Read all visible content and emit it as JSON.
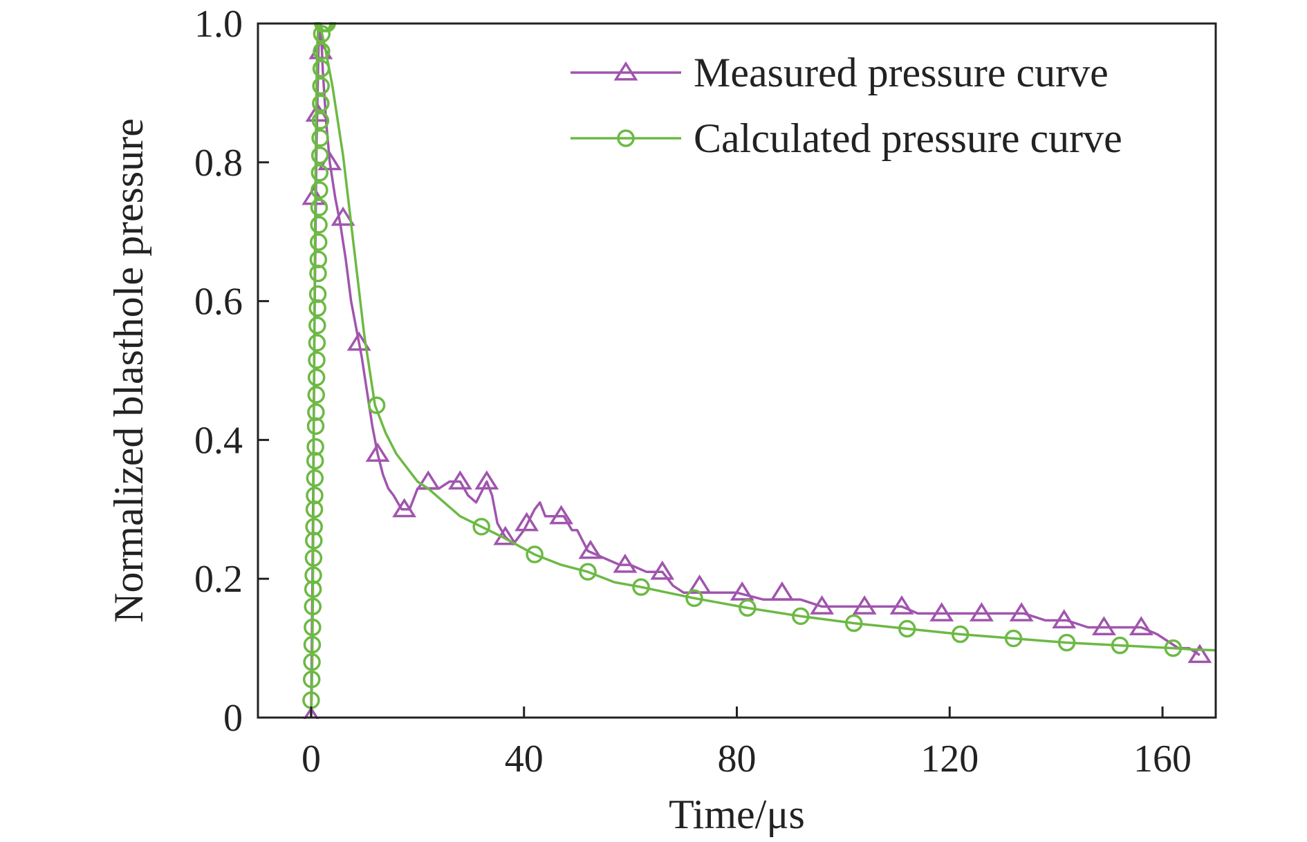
{
  "chart_data": {
    "type": "line",
    "title": "",
    "xlabel": "Time/μs",
    "ylabel": "Normalized blasthole pressure",
    "xlim": [
      -10,
      170
    ],
    "ylim": [
      0,
      1
    ],
    "x_ticks": [
      0,
      40,
      80,
      120,
      160
    ],
    "y_ticks": [
      0,
      0.2,
      0.4,
      0.6,
      0.8,
      1.0
    ],
    "x_tick_labels": [
      "0",
      "40",
      "80",
      "120",
      "160"
    ],
    "y_tick_labels": [
      "0",
      "0.2",
      "0.4",
      "0.6",
      "0.8",
      "1.0"
    ],
    "grid": false,
    "legend_position": "top-right",
    "series": [
      {
        "name": "Measured pressure curve",
        "color": "#a055ad",
        "marker": "triangle-open",
        "line": [
          [
            0,
            0
          ],
          [
            0.3,
            0.25
          ],
          [
            0.6,
            0.55
          ],
          [
            1,
            0.82
          ],
          [
            1.4,
            0.97
          ],
          [
            1.8,
            1.0
          ],
          [
            2.2,
            0.93
          ],
          [
            2.8,
            0.86
          ],
          [
            3.5,
            0.8
          ],
          [
            4.5,
            0.75
          ],
          [
            5.5,
            0.71
          ],
          [
            6.5,
            0.66
          ],
          [
            7.5,
            0.6
          ],
          [
            8.5,
            0.56
          ],
          [
            9.5,
            0.52
          ],
          [
            10.5,
            0.47
          ],
          [
            11.5,
            0.42
          ],
          [
            12.5,
            0.38
          ],
          [
            13.5,
            0.35
          ],
          [
            14.5,
            0.33
          ],
          [
            15.5,
            0.32
          ],
          [
            17,
            0.3
          ],
          [
            18.5,
            0.3
          ],
          [
            20,
            0.33
          ],
          [
            22,
            0.33
          ],
          [
            24,
            0.33
          ],
          [
            26,
            0.34
          ],
          [
            28,
            0.34
          ],
          [
            29.5,
            0.32
          ],
          [
            31,
            0.31
          ],
          [
            33,
            0.34
          ],
          [
            34,
            0.32
          ],
          [
            35,
            0.28
          ],
          [
            36.5,
            0.26
          ],
          [
            38,
            0.25
          ],
          [
            40,
            0.27
          ],
          [
            42,
            0.3
          ],
          [
            43,
            0.31
          ],
          [
            44,
            0.29
          ],
          [
            46,
            0.29
          ],
          [
            47.5,
            0.29
          ],
          [
            49,
            0.27
          ],
          [
            50,
            0.27
          ],
          [
            52,
            0.24
          ],
          [
            55,
            0.23
          ],
          [
            58,
            0.22
          ],
          [
            60,
            0.22
          ],
          [
            63,
            0.21
          ],
          [
            66,
            0.21
          ],
          [
            68,
            0.19
          ],
          [
            70,
            0.18
          ],
          [
            73,
            0.18
          ],
          [
            76,
            0.18
          ],
          [
            80,
            0.18
          ],
          [
            85,
            0.17
          ],
          [
            89,
            0.17
          ],
          [
            92,
            0.17
          ],
          [
            96,
            0.16
          ],
          [
            100,
            0.16
          ],
          [
            104,
            0.16
          ],
          [
            108,
            0.16
          ],
          [
            111,
            0.16
          ],
          [
            114,
            0.15
          ],
          [
            119,
            0.15
          ],
          [
            122,
            0.15
          ],
          [
            126,
            0.15
          ],
          [
            130,
            0.15
          ],
          [
            134,
            0.15
          ],
          [
            138,
            0.14
          ],
          [
            142,
            0.14
          ],
          [
            146,
            0.13
          ],
          [
            149,
            0.13
          ],
          [
            153,
            0.13
          ],
          [
            156,
            0.13
          ],
          [
            159,
            0.12
          ],
          [
            161,
            0.11
          ],
          [
            163,
            0.1
          ],
          [
            165,
            0.1
          ],
          [
            167,
            0.09
          ]
        ],
        "markers": [
          [
            0,
            0.0
          ],
          [
            0.5,
            0.75
          ],
          [
            1.2,
            0.87
          ],
          [
            1.8,
            0.96
          ],
          [
            3.5,
            0.8
          ],
          [
            6,
            0.72
          ],
          [
            9,
            0.54
          ],
          [
            12.5,
            0.38
          ],
          [
            17.5,
            0.3
          ],
          [
            22,
            0.34
          ],
          [
            28,
            0.34
          ],
          [
            33,
            0.34
          ],
          [
            36.5,
            0.26
          ],
          [
            40.5,
            0.28
          ],
          [
            47,
            0.29
          ],
          [
            52.5,
            0.24
          ],
          [
            59,
            0.22
          ],
          [
            66,
            0.21
          ],
          [
            73,
            0.19
          ],
          [
            81,
            0.18
          ],
          [
            88.5,
            0.18
          ],
          [
            96,
            0.16
          ],
          [
            104,
            0.16
          ],
          [
            111,
            0.16
          ],
          [
            118.5,
            0.15
          ],
          [
            126,
            0.15
          ],
          [
            133.5,
            0.15
          ],
          [
            141.5,
            0.14
          ],
          [
            149,
            0.13
          ],
          [
            156,
            0.13
          ],
          [
            167,
            0.09
          ]
        ]
      },
      {
        "name": "Calculated pressure curve",
        "color": "#6cb944",
        "marker": "circle-open",
        "line": [
          [
            0,
            0.0
          ],
          [
            0.1,
            0.03
          ],
          [
            0.2,
            0.08
          ],
          [
            0.3,
            0.16
          ],
          [
            0.4,
            0.28
          ],
          [
            0.5,
            0.42
          ],
          [
            0.6,
            0.55
          ],
          [
            0.7,
            0.66
          ],
          [
            0.8,
            0.76
          ],
          [
            0.9,
            0.84
          ],
          [
            1.0,
            0.9
          ],
          [
            1.1,
            0.95
          ],
          [
            1.2,
            0.98
          ],
          [
            1.4,
            1.0
          ],
          [
            1.6,
            1.0
          ],
          [
            1.9,
            0.99
          ],
          [
            2.5,
            0.97
          ],
          [
            4,
            0.91
          ],
          [
            6,
            0.81
          ],
          [
            8,
            0.68
          ],
          [
            10,
            0.55
          ],
          [
            11,
            0.5
          ],
          [
            12,
            0.45
          ],
          [
            14,
            0.41
          ],
          [
            16,
            0.38
          ],
          [
            18,
            0.36
          ],
          [
            20,
            0.34
          ],
          [
            22,
            0.33
          ],
          [
            25,
            0.31
          ],
          [
            28,
            0.29
          ],
          [
            32,
            0.275
          ],
          [
            36,
            0.26
          ],
          [
            42,
            0.235
          ],
          [
            47,
            0.22
          ],
          [
            52,
            0.21
          ],
          [
            57,
            0.195
          ],
          [
            62,
            0.188
          ],
          [
            67,
            0.18
          ],
          [
            72,
            0.172
          ],
          [
            77,
            0.165
          ],
          [
            82,
            0.158
          ],
          [
            87,
            0.152
          ],
          [
            92,
            0.146
          ],
          [
            97,
            0.141
          ],
          [
            102,
            0.136
          ],
          [
            107,
            0.132
          ],
          [
            112,
            0.128
          ],
          [
            117,
            0.124
          ],
          [
            122,
            0.12
          ],
          [
            127,
            0.117
          ],
          [
            132,
            0.114
          ],
          [
            137,
            0.111
          ],
          [
            142,
            0.108
          ],
          [
            147,
            0.106
          ],
          [
            152,
            0.104
          ],
          [
            157,
            0.102
          ],
          [
            162,
            0.1
          ],
          [
            166,
            0.098
          ],
          [
            170,
            0.097
          ]
        ],
        "markers": [
          [
            0,
            0.025
          ],
          [
            0.1,
            0.055
          ],
          [
            0.15,
            0.08
          ],
          [
            0.2,
            0.105
          ],
          [
            0.25,
            0.13
          ],
          [
            0.3,
            0.16
          ],
          [
            0.35,
            0.185
          ],
          [
            0.4,
            0.205
          ],
          [
            0.45,
            0.23
          ],
          [
            0.5,
            0.255
          ],
          [
            0.55,
            0.275
          ],
          [
            0.6,
            0.3
          ],
          [
            0.65,
            0.32
          ],
          [
            0.7,
            0.345
          ],
          [
            0.75,
            0.37
          ],
          [
            0.8,
            0.39
          ],
          [
            0.85,
            0.42
          ],
          [
            0.9,
            0.44
          ],
          [
            0.95,
            0.465
          ],
          [
            1.0,
            0.49
          ],
          [
            1.05,
            0.515
          ],
          [
            1.1,
            0.54
          ],
          [
            1.15,
            0.565
          ],
          [
            1.2,
            0.59
          ],
          [
            1.25,
            0.61
          ],
          [
            1.3,
            0.64
          ],
          [
            1.35,
            0.66
          ],
          [
            1.4,
            0.685
          ],
          [
            1.45,
            0.71
          ],
          [
            1.5,
            0.735
          ],
          [
            1.55,
            0.76
          ],
          [
            1.6,
            0.785
          ],
          [
            1.65,
            0.81
          ],
          [
            1.7,
            0.835
          ],
          [
            1.75,
            0.86
          ],
          [
            1.8,
            0.885
          ],
          [
            1.85,
            0.91
          ],
          [
            1.9,
            0.935
          ],
          [
            1.95,
            0.96
          ],
          [
            2.0,
            0.985
          ],
          [
            2.2,
            1.0
          ],
          [
            2.6,
            1.0
          ],
          [
            3.0,
            1.0
          ],
          [
            12.3,
            0.45
          ],
          [
            32,
            0.275
          ],
          [
            42,
            0.235
          ],
          [
            52,
            0.21
          ],
          [
            62,
            0.188
          ],
          [
            72,
            0.172
          ],
          [
            82,
            0.158
          ],
          [
            92,
            0.146
          ],
          [
            102,
            0.136
          ],
          [
            112,
            0.128
          ],
          [
            122,
            0.12
          ],
          [
            132,
            0.114
          ],
          [
            142,
            0.108
          ],
          [
            152,
            0.104
          ],
          [
            162,
            0.1
          ]
        ]
      }
    ]
  }
}
